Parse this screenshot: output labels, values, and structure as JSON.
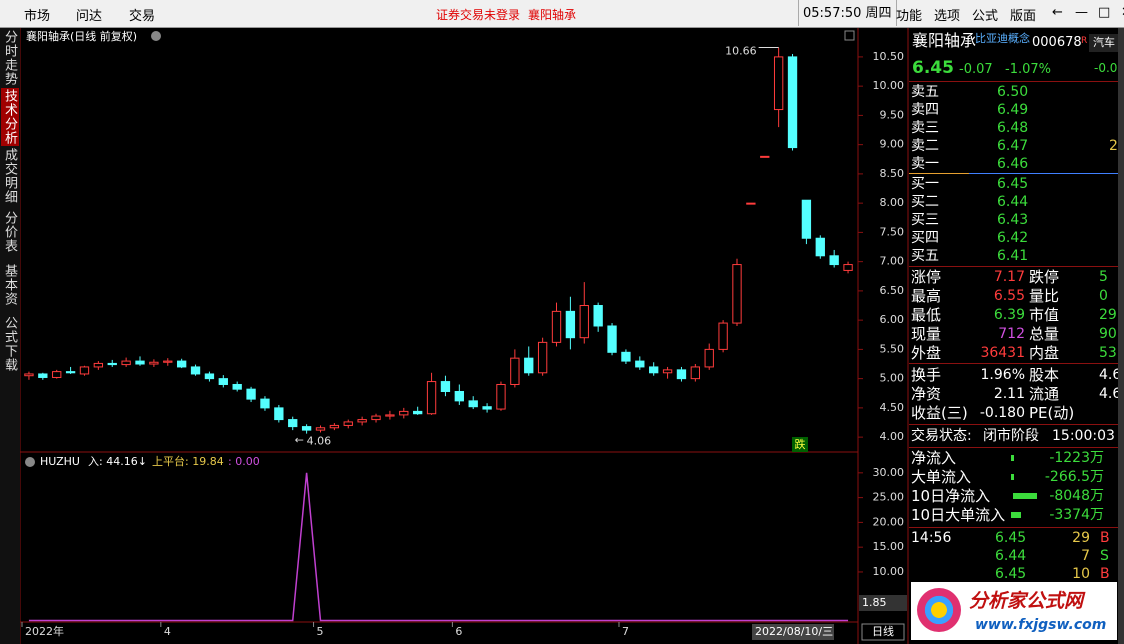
{
  "top_bar": {
    "menu": [
      "市场",
      "问达",
      "交易"
    ],
    "notice": "证券交易未登录",
    "stock": "襄阳轴承",
    "clock": "05:57:50 周四",
    "tools": [
      "功能",
      "选项",
      "公式",
      "版面"
    ]
  },
  "side_tabs": [
    "分时走势",
    "技术分析",
    "成交明细",
    "分价表",
    "基本资料",
    "公式下载"
  ],
  "chart_data": [
    {
      "type": "candlestick",
      "title": "襄阳轴承(日线 前复权)",
      "categories": [
        "2022年",
        null,
        null,
        null,
        null,
        null,
        null,
        null,
        null,
        null,
        "4",
        null,
        null,
        null,
        null,
        null,
        null,
        null,
        null,
        null,
        null,
        "5",
        null,
        null,
        null,
        null,
        null,
        null,
        null,
        null,
        null,
        "6",
        null,
        null,
        null,
        null,
        null,
        null,
        null,
        null,
        null,
        null,
        null,
        "7",
        null,
        null,
        null,
        null,
        null,
        null,
        null,
        null,
        null,
        null,
        null,
        null,
        null,
        null,
        null,
        null
      ],
      "open": [
        5.05,
        5.08,
        5.02,
        5.12,
        5.08,
        5.2,
        5.26,
        5.24,
        5.3,
        5.25,
        5.28,
        5.3,
        5.2,
        5.08,
        5.0,
        4.9,
        4.82,
        4.65,
        4.5,
        4.3,
        4.18,
        4.12,
        4.16,
        4.2,
        4.26,
        4.3,
        4.36,
        4.38,
        4.44,
        4.4,
        4.95,
        4.78,
        4.62,
        4.52,
        4.48,
        4.9,
        5.35,
        5.1,
        5.62,
        6.15,
        5.7,
        6.25,
        5.9,
        5.45,
        5.3,
        5.2,
        5.1,
        5.15,
        5.0,
        5.2,
        5.5,
        5.95,
        8.0,
        8.8,
        9.6,
        10.5,
        8.05,
        7.4,
        7.1,
        6.85
      ],
      "high": [
        5.12,
        5.1,
        5.15,
        5.2,
        5.22,
        5.3,
        5.32,
        5.36,
        5.38,
        5.33,
        5.35,
        5.34,
        5.24,
        5.12,
        5.06,
        4.95,
        4.86,
        4.7,
        4.55,
        4.35,
        4.22,
        4.2,
        4.24,
        4.3,
        4.35,
        4.4,
        4.45,
        4.5,
        4.52,
        5.1,
        5.05,
        4.9,
        4.7,
        4.58,
        4.95,
        5.5,
        5.55,
        5.7,
        6.3,
        6.4,
        6.65,
        6.3,
        5.95,
        5.5,
        5.38,
        5.28,
        5.2,
        5.2,
        5.25,
        5.6,
        6.0,
        7.05,
        8.0,
        8.8,
        10.66,
        10.55,
        8.05,
        7.45,
        7.2,
        7.0
      ],
      "low": [
        4.98,
        4.98,
        5.0,
        5.08,
        5.05,
        5.15,
        5.2,
        5.2,
        5.22,
        5.2,
        5.22,
        5.18,
        5.05,
        4.95,
        4.85,
        4.78,
        4.6,
        4.45,
        4.25,
        4.12,
        4.06,
        4.08,
        4.12,
        4.15,
        4.2,
        4.25,
        4.3,
        4.32,
        4.38,
        4.38,
        4.7,
        4.55,
        4.48,
        4.42,
        4.45,
        4.85,
        5.05,
        5.05,
        5.55,
        5.5,
        5.6,
        5.8,
        5.4,
        5.25,
        5.15,
        5.05,
        5.0,
        4.95,
        4.95,
        5.15,
        5.45,
        5.9,
        8.0,
        8.8,
        9.3,
        8.9,
        7.3,
        7.05,
        6.9,
        6.8
      ],
      "close": [
        5.08,
        5.02,
        5.12,
        5.1,
        5.2,
        5.26,
        5.24,
        5.3,
        5.25,
        5.28,
        5.3,
        5.2,
        5.08,
        5.0,
        4.9,
        4.82,
        4.65,
        4.5,
        4.3,
        4.18,
        4.12,
        4.16,
        4.2,
        4.26,
        4.3,
        4.36,
        4.38,
        4.44,
        4.4,
        4.95,
        4.78,
        4.62,
        4.52,
        4.48,
        4.9,
        5.35,
        5.1,
        5.62,
        6.15,
        5.7,
        6.25,
        5.9,
        5.45,
        5.3,
        5.2,
        5.1,
        5.15,
        5.0,
        5.2,
        5.5,
        5.95,
        6.95,
        8.0,
        8.8,
        10.5,
        8.95,
        7.4,
        7.1,
        6.95,
        6.95
      ],
      "up_color": "#ff3c3c",
      "down_color": "#54ffff",
      "ylim": [
        3.78,
        10.96
      ],
      "yticks": [
        {
          "value": 4,
          "label": "4.00"
        },
        {
          "value": 4.5,
          "label": "4.50"
        },
        {
          "value": 5,
          "label": "5.00"
        },
        {
          "value": 5.5,
          "label": "5.50"
        },
        {
          "value": 6,
          "label": "6.00"
        },
        {
          "value": 6.5,
          "label": "6.50"
        },
        {
          "value": 7,
          "label": "7.00"
        },
        {
          "value": 7.5,
          "label": "7.50"
        },
        {
          "value": 8,
          "label": "8.00"
        },
        {
          "value": 8.5,
          "label": "8.50"
        },
        {
          "value": 9,
          "label": "9.00"
        },
        {
          "value": 9.5,
          "label": "9.50"
        },
        {
          "value": 10,
          "label": "10.00"
        },
        {
          "value": 10.5,
          "label": "10.50"
        }
      ],
      "annotations": [
        "10.66",
        "4.06"
      ],
      "marker": "跌",
      "cursor_date": "2022/08/10/三",
      "period": "日线"
    },
    {
      "type": "line",
      "name": "HUZHU",
      "readouts": [
        "入: 44.16↓",
        "上平台: 19.84",
        ": 0.00"
      ],
      "color": "#c040d0",
      "values": [
        0.2,
        0.2,
        0.2,
        0.2,
        0.2,
        0.2,
        0.2,
        0.2,
        0.2,
        0.2,
        0.2,
        0.2,
        0.2,
        0.2,
        0.2,
        0.2,
        0.2,
        0.2,
        0.2,
        0.2,
        30,
        0.2,
        0.2,
        0.2,
        0.2,
        0.2,
        0.2,
        0.2,
        0.2,
        0.2,
        0.2,
        0.2,
        0.2,
        0.2,
        0.2,
        0.2,
        0.2,
        0.2,
        0.2,
        0.2,
        0.2,
        0.2,
        0.2,
        0.2,
        0.2,
        0.2,
        0.2,
        0.2,
        0.2,
        0.2,
        0.2,
        0.2,
        0.2,
        0.2,
        0.2,
        0.2,
        0.2,
        0.2,
        0.2,
        0.2
      ],
      "ylim": [
        -0.1,
        33.6
      ],
      "yticks": [
        {
          "value": 10,
          "label": "10.00"
        },
        {
          "value": 15,
          "label": "15.00"
        },
        {
          "value": 20,
          "label": "20.00"
        },
        {
          "value": 25,
          "label": "25.00"
        },
        {
          "value": 30,
          "label": "30.00"
        }
      ],
      "current_label": "1.85"
    }
  ],
  "quote": {
    "name": "襄阳轴承",
    "concept": "比亚迪概念",
    "code": "000678",
    "flag": "R",
    "tab": "汽车",
    "tab_value": "-0.0",
    "price": "6.45",
    "change": "-0.07",
    "percent": "-1.07%",
    "asks": [
      {
        "label": "卖五",
        "price": "6.50"
      },
      {
        "label": "卖四",
        "price": "6.49"
      },
      {
        "label": "卖三",
        "price": "6.48"
      },
      {
        "label": "卖二",
        "price": "6.47",
        "volume": "2"
      },
      {
        "label": "卖一",
        "price": "6.46"
      }
    ],
    "bids": [
      {
        "label": "买一",
        "price": "6.45"
      },
      {
        "label": "买二",
        "price": "6.44"
      },
      {
        "label": "买三",
        "price": "6.43"
      },
      {
        "label": "买四",
        "price": "6.42"
      },
      {
        "label": "买五",
        "price": "6.41"
      }
    ],
    "stats": [
      {
        "l1": "涨停",
        "v1": "7.17",
        "c1": "#ff3c3c",
        "l2": "跌停",
        "v2": "5"
      },
      {
        "l1": "最高",
        "v1": "6.55",
        "c1": "#ff3c3c",
        "l2": "量比",
        "v2": "0"
      },
      {
        "l1": "最低",
        "v1": "6.39",
        "c1": "#3cdc3c",
        "l2": "市值",
        "v2": "29."
      },
      {
        "l1": "现量",
        "v1": "712",
        "c1": "#d050e0",
        "l2": "总量",
        "v2": "90"
      },
      {
        "l1": "外盘",
        "v1": "36431",
        "c1": "#ff3c3c",
        "l2": "内盘",
        "v2": "53"
      }
    ],
    "finance": [
      {
        "l1": "换手",
        "v1": "1.96%",
        "l2": "股本",
        "v2": "4.6"
      },
      {
        "l1": "净资",
        "v1": "2.11",
        "l2": "流通",
        "v2": "4.6"
      },
      {
        "l1": "收益(三)",
        "v1": "-0.180",
        "l2": "PE(动)"
      }
    ],
    "status_label": "交易状态:",
    "status": "闭市阶段",
    "status_time": "15:00:03",
    "flows": [
      {
        "label": "净流入",
        "value": "-1223万"
      },
      {
        "label": "大单流入",
        "value": "-266.5万"
      },
      {
        "label": "10日净流入",
        "value": "-8048万"
      },
      {
        "label": "10日大单流入",
        "value": "-3374万"
      }
    ],
    "trades": [
      {
        "time": "14:56",
        "price": "6.45",
        "volume": "29",
        "side": "B"
      },
      {
        "price": "6.44",
        "volume": "7",
        "side": "S"
      },
      {
        "price": "6.45",
        "volume": "10",
        "side": "B"
      }
    ]
  },
  "logo": {
    "name": "分析家公式网",
    "url": "www.fxjgsw.com"
  }
}
